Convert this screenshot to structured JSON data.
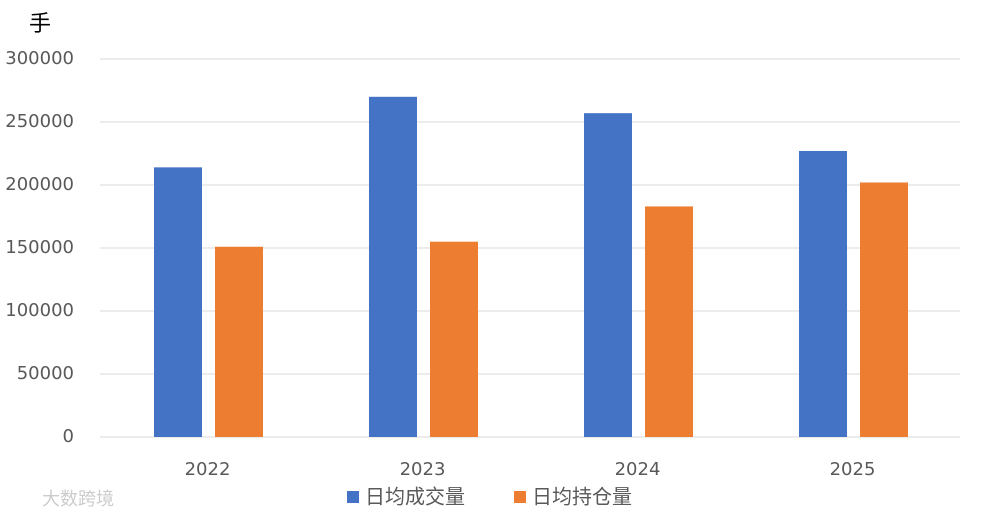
{
  "chart_data": {
    "type": "bar",
    "unit_label": "手",
    "categories": [
      "2022",
      "2023",
      "2024",
      "2025"
    ],
    "series": [
      {
        "name": "日均成交量",
        "color": "#4472c4",
        "values": [
          214000,
          270000,
          257000,
          227000
        ]
      },
      {
        "name": "日均持仓量",
        "color": "#ed7d31",
        "values": [
          151000,
          155000,
          183000,
          202000
        ]
      }
    ],
    "ylim": [
      0,
      300000
    ],
    "yticks": [
      0,
      50000,
      100000,
      150000,
      200000,
      250000,
      300000
    ],
    "grid": true,
    "legend": "bottom",
    "watermark": "大数跨境"
  }
}
